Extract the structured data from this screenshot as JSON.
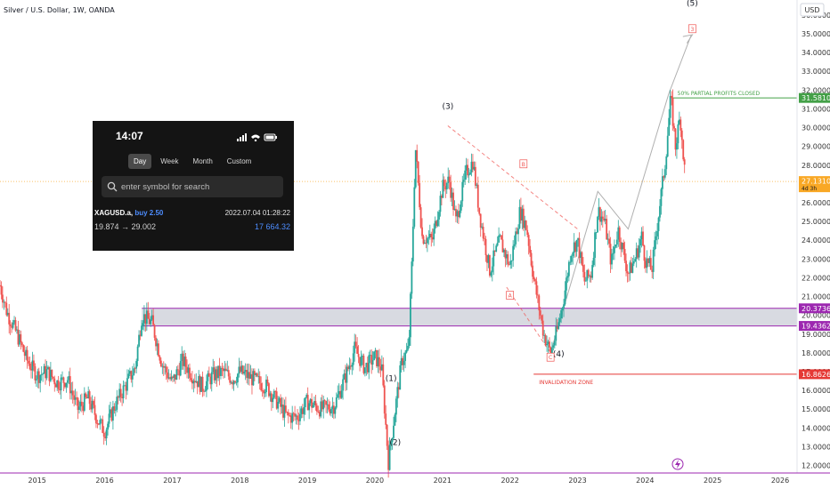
{
  "header": {
    "title": "Silver / U.S. Dollar, 1W, OANDA",
    "currency": "USD"
  },
  "chart_data": {
    "type": "candlestick",
    "symbol": "Silver / U.S. Dollar",
    "interval": "1W",
    "source": "OANDA",
    "yrange": [
      11.6,
      36.8
    ],
    "y_ticks": [
      "12.00000",
      "13.00000",
      "14.00000",
      "15.00000",
      "16.00000",
      "17.00000",
      "18.00000",
      "19.00000",
      "20.00000",
      "21.00000",
      "22.00000",
      "23.00000",
      "24.00000",
      "25.00000",
      "26.00000",
      "27.00000",
      "28.00000",
      "29.00000",
      "30.00000",
      "31.00000",
      "32.00000",
      "33.00000",
      "34.00000",
      "35.00000",
      "36.00000"
    ],
    "x_ticks": [
      "2015",
      "2016",
      "2017",
      "2018",
      "2019",
      "2020",
      "2021",
      "2022",
      "2023",
      "2024",
      "2025",
      "2026"
    ],
    "price_path": [
      [
        2014.45,
        21.6
      ],
      [
        2014.55,
        20.2
      ],
      [
        2014.7,
        19.0
      ],
      [
        2014.85,
        17.6
      ],
      [
        2015.0,
        16.8
      ],
      [
        2015.15,
        17.0
      ],
      [
        2015.3,
        16.4
      ],
      [
        2015.45,
        16.6
      ],
      [
        2015.6,
        15.0
      ],
      [
        2015.75,
        15.6
      ],
      [
        2015.9,
        14.4
      ],
      [
        2016.0,
        13.8
      ],
      [
        2016.15,
        15.2
      ],
      [
        2016.3,
        16.2
      ],
      [
        2016.45,
        17.2
      ],
      [
        2016.55,
        20.0
      ],
      [
        2016.7,
        19.6
      ],
      [
        2016.85,
        17.4
      ],
      [
        2017.0,
        16.4
      ],
      [
        2017.15,
        17.6
      ],
      [
        2017.3,
        16.8
      ],
      [
        2017.45,
        16.2
      ],
      [
        2017.6,
        16.8
      ],
      [
        2017.75,
        17.0
      ],
      [
        2017.9,
        16.6
      ],
      [
        2018.0,
        17.0
      ],
      [
        2018.2,
        16.6
      ],
      [
        2018.4,
        16.2
      ],
      [
        2018.55,
        15.4
      ],
      [
        2018.7,
        14.6
      ],
      [
        2018.85,
        14.6
      ],
      [
        2019.0,
        15.4
      ],
      [
        2019.2,
        15.0
      ],
      [
        2019.4,
        15.2
      ],
      [
        2019.55,
        16.6
      ],
      [
        2019.7,
        18.2
      ],
      [
        2019.85,
        17.2
      ],
      [
        2020.0,
        17.8
      ],
      [
        2020.1,
        17.2
      ],
      [
        2020.2,
        12.2
      ],
      [
        2020.3,
        15.0
      ],
      [
        2020.4,
        17.6
      ],
      [
        2020.5,
        18.2
      ],
      [
        2020.55,
        23.0
      ],
      [
        2020.6,
        29.0
      ],
      [
        2020.7,
        24.2
      ],
      [
        2020.85,
        24.0
      ],
      [
        2021.0,
        26.8
      ],
      [
        2021.1,
        27.2
      ],
      [
        2021.2,
        25.0
      ],
      [
        2021.35,
        27.6
      ],
      [
        2021.45,
        28.2
      ],
      [
        2021.55,
        25.4
      ],
      [
        2021.7,
        22.4
      ],
      [
        2021.85,
        24.0
      ],
      [
        2022.0,
        22.6
      ],
      [
        2022.15,
        25.6
      ],
      [
        2022.25,
        24.6
      ],
      [
        2022.35,
        22.0
      ],
      [
        2022.5,
        19.0
      ],
      [
        2022.6,
        18.0
      ],
      [
        2022.7,
        19.2
      ],
      [
        2022.8,
        21.0
      ],
      [
        2022.9,
        23.4
      ],
      [
        2023.0,
        24.0
      ],
      [
        2023.1,
        21.8
      ],
      [
        2023.2,
        22.2
      ],
      [
        2023.3,
        25.6
      ],
      [
        2023.4,
        25.0
      ],
      [
        2023.5,
        22.8
      ],
      [
        2023.6,
        24.6
      ],
      [
        2023.75,
        22.2
      ],
      [
        2023.85,
        23.0
      ],
      [
        2023.95,
        24.2
      ],
      [
        2024.0,
        23.0
      ],
      [
        2024.1,
        22.4
      ],
      [
        2024.2,
        25.4
      ],
      [
        2024.3,
        28.2
      ],
      [
        2024.38,
        31.6
      ],
      [
        2024.45,
        29.0
      ],
      [
        2024.52,
        30.6
      ],
      [
        2024.6,
        27.1
      ]
    ],
    "zones": [
      {
        "name": "support-zone",
        "low": 19.43622,
        "high": 20.37366,
        "color": "#d1d4dc",
        "border": "#9c27b0"
      }
    ],
    "levels": [
      {
        "name": "profit-line",
        "price": 31.581,
        "color": "#43a047",
        "label": "50% PARTIAL PROFITS CLOSED",
        "tag": "31.58100"
      },
      {
        "name": "invalidation-line",
        "price": 16.86261,
        "color": "#e53935",
        "label": "INVALIDATION ZONE",
        "tag": "16.86261"
      },
      {
        "name": "zone-top",
        "price": 20.37366,
        "color": "#9c27b0",
        "tag": "20.37366"
      },
      {
        "name": "zone-bottom",
        "price": 19.43622,
        "color": "#9c27b0",
        "tag": "19.43622"
      },
      {
        "name": "current-line",
        "price": 27.131,
        "color": "#f9a825",
        "tag": "27.13100",
        "tag_sub": "4d 3h"
      }
    ],
    "wave_labels": [
      {
        "text": "(1)",
        "x": 2020.24,
        "y": 16.5
      },
      {
        "text": "(2)",
        "x": 2020.3,
        "y": 13.1
      },
      {
        "text": "(3)",
        "x": 2021.08,
        "y": 31.0
      },
      {
        "text": "(4)",
        "x": 2022.72,
        "y": 17.8
      },
      {
        "text": "(5)",
        "x": 2024.7,
        "y": 36.5
      }
    ],
    "abc_labels": [
      {
        "text": "A",
        "x": 2022.0,
        "y": 21.0
      },
      {
        "text": "B",
        "x": 2022.2,
        "y": 28.0
      },
      {
        "text": "C",
        "x": 2022.6,
        "y": 17.7
      },
      {
        "text": "3",
        "x": 2024.7,
        "y": 35.2
      }
    ]
  },
  "widget": {
    "clock": "14:07",
    "tabs": [
      "Day",
      "Week",
      "Month",
      "Custom"
    ],
    "active_tab": "Day",
    "search_placeholder": "enter symbol for search",
    "symbol": "XAGUSD.a,",
    "side": "buy 2.50",
    "timestamp": "2022.07.04 01:28:22",
    "price_range": "19.874 → 29.002",
    "amount": "17 664.32"
  },
  "colors": {
    "up": "#26a69a",
    "down": "#ef5350",
    "profit": "#43a047",
    "invalidation": "#e53935",
    "zone_border": "#9c27b0",
    "current": "#f9a825"
  }
}
